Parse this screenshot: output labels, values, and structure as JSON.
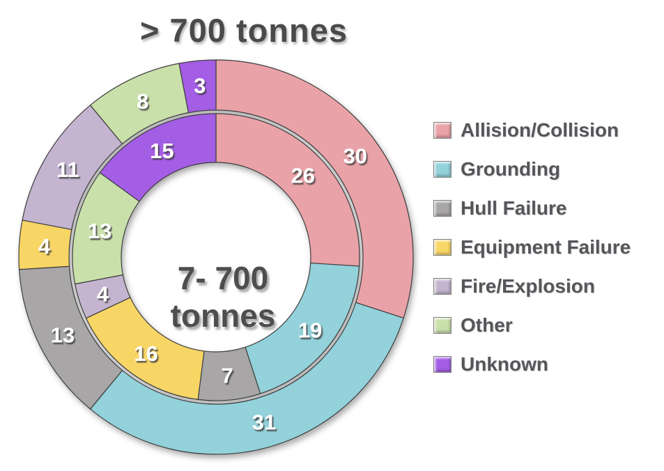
{
  "chart_data": {
    "type": "donut",
    "title": "> 700 tonnes",
    "center_label": [
      "7- 700",
      "tonnes"
    ],
    "categories": [
      "Allision/Collision",
      "Grounding",
      "Hull Failure",
      "Equipment Failure",
      "Fire/Explosion",
      "Other",
      "Unknown"
    ],
    "colors": [
      "#E9A2A8",
      "#93D1DB",
      "#A8A6A7",
      "#F8D666",
      "#C4B4CF",
      "#C9E0AA",
      "#A45DE5"
    ],
    "series": [
      {
        "name": "> 700 tonnes",
        "ring": "outer",
        "values": [
          30,
          31,
          13,
          4,
          11,
          8,
          3
        ]
      },
      {
        "name": "7- 700 tonnes",
        "ring": "inner",
        "values": [
          26,
          19,
          7,
          16,
          4,
          13,
          15
        ]
      }
    ],
    "total_per_ring": 100,
    "start_angle_deg": 0,
    "direction": "clockwise",
    "legend_position": "right",
    "label_color": "#ffffff",
    "outline_color": "#3d3d3d"
  }
}
